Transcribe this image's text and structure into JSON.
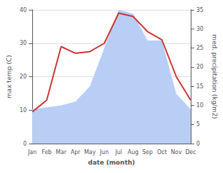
{
  "chart_data": {
    "type": "line",
    "categories": [
      "Jan",
      "Feb",
      "Mar",
      "Apr",
      "May",
      "Jun",
      "Jul",
      "Aug",
      "Sep",
      "Oct",
      "Nov",
      "Dec"
    ],
    "series": [
      {
        "type": "area",
        "color": "#b8cef5",
        "axis": "y2",
        "values": [
          9.0,
          9.5,
          10.0,
          11.0,
          15.0,
          25.0,
          35.0,
          34.0,
          27.0,
          27.0,
          13.0,
          9.0
        ]
      },
      {
        "type": "line",
        "color": "#cc3333",
        "values": [
          9.5,
          13.0,
          29.0,
          27.0,
          27.5,
          30.0,
          39.0,
          38.0,
          33.5,
          31.0,
          20.0,
          13.0
        ]
      }
    ],
    "xlabel": "date (month)",
    "ylabel": "max temp (C)",
    "y2label": "med. precipitation (kg/m2)",
    "ylim": [
      0,
      40
    ],
    "yticks": [
      0,
      10,
      20,
      30,
      40
    ],
    "y2lim": [
      0,
      35
    ],
    "y2ticks": [
      0,
      5,
      10,
      15,
      20,
      25,
      30,
      35
    ],
    "grid": true
  }
}
